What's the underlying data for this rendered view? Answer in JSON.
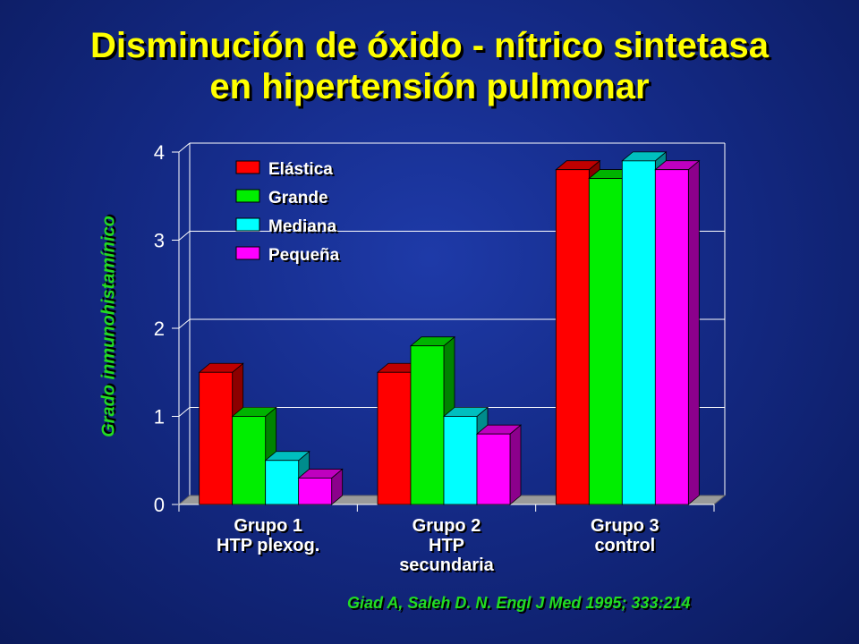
{
  "title": {
    "line1": "Disminución de óxido - nítrico sintetasa",
    "line2": "en hipertensión pulmonar"
  },
  "citation": "Giad A, Saleh D. N. Engl J Med 1995; 333:214",
  "colors": {
    "background": "#142a86",
    "title": "#ffff00",
    "accent_text": "#22dd22"
  },
  "chart_data": {
    "type": "bar",
    "title": "",
    "ylabel": "Grado inmunohistamínico",
    "xlabel": "",
    "ylim": [
      0,
      4
    ],
    "yticks": [
      "0",
      "1",
      "2",
      "3",
      "4"
    ],
    "grid": true,
    "legend_position": "top-left",
    "categories": [
      [
        "Grupo 1",
        "HTP plexog."
      ],
      [
        "Grupo 2",
        "HTP",
        "secundaria"
      ],
      [
        "Grupo 3",
        "control"
      ]
    ],
    "series": [
      {
        "name": "Elástica",
        "color": "#ff0000",
        "values": [
          1.5,
          1.5,
          3.8
        ]
      },
      {
        "name": "Grande",
        "color": "#00ee00",
        "values": [
          1.0,
          1.8,
          3.7
        ]
      },
      {
        "name": "Mediana",
        "color": "#00ffff",
        "values": [
          0.5,
          1.0,
          3.9
        ]
      },
      {
        "name": "Pequeña",
        "color": "#ff00ff",
        "values": [
          0.3,
          0.8,
          3.8
        ]
      }
    ]
  }
}
